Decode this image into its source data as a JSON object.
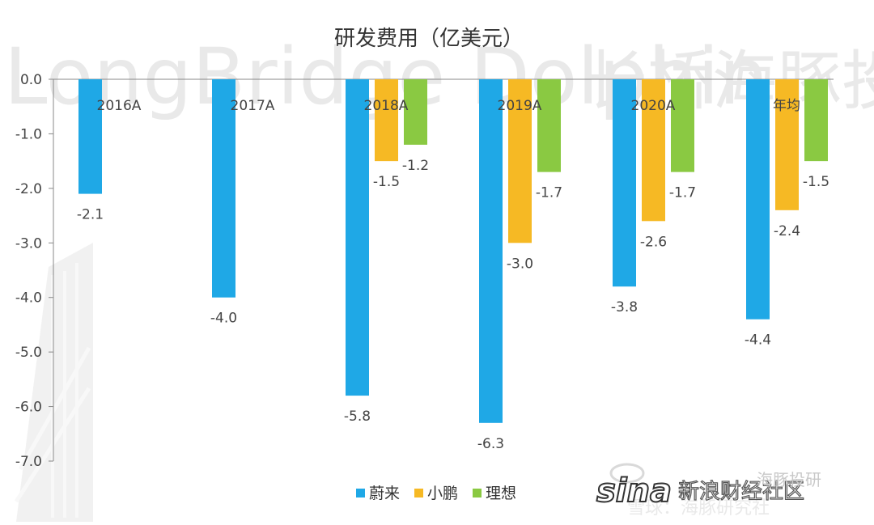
{
  "chart_data": {
    "type": "bar",
    "title": "研发费用（亿美元）",
    "categories": [
      "2016A",
      "2017A",
      "2018A",
      "2019A",
      "2020A",
      "年均"
    ],
    "series": [
      {
        "name": "蔚来",
        "color": "#1fa8e6",
        "values": [
          -2.1,
          -4.0,
          -5.8,
          -6.3,
          -3.8,
          -4.4
        ]
      },
      {
        "name": "小鹏",
        "color": "#f6b924",
        "values": [
          null,
          null,
          -1.5,
          -3.0,
          -2.6,
          -2.4
        ]
      },
      {
        "name": "理想",
        "color": "#8ac942",
        "values": [
          null,
          null,
          -1.2,
          -1.7,
          -1.7,
          -1.5
        ]
      }
    ],
    "ylim": [
      -7.0,
      0.0
    ],
    "yticks": [
      "0.0",
      "-1.0",
      "-2.0",
      "-3.0",
      "-4.0",
      "-5.0",
      "-6.0",
      "-7.0"
    ],
    "grid": false,
    "legend": "bottom"
  },
  "watermark": {
    "text_latin": "LongBridge Dolphin",
    "text_cn": "长桥海豚投研",
    "bottom_brand": "新浪财经社区",
    "bottom_wechat": "海豚投研",
    "bottom_faint": "雪球：海豚研究社"
  }
}
